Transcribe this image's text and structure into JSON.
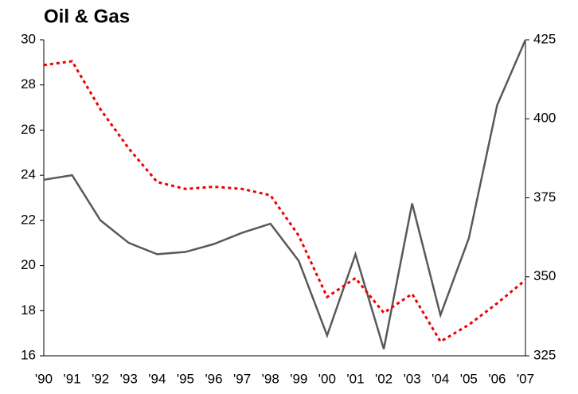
{
  "chart_data": {
    "type": "line",
    "title": "Oil & Gas",
    "categories": [
      "'90",
      "'91",
      "'92",
      "'93",
      "'94",
      "'95",
      "'96",
      "'97",
      "'98",
      "'99",
      "'00",
      "'01",
      "'02",
      "'03",
      "'04",
      "'05",
      "'06",
      "'07"
    ],
    "series": [
      {
        "color": "#595959",
        "values": [
          23.8,
          24.0,
          22.0,
          21.0,
          20.5,
          20.6,
          20.95,
          21.45,
          21.85,
          20.2,
          16.9,
          20.5,
          16.3,
          22.75,
          17.8,
          21.2,
          27.1,
          30.0
        ]
      },
      {
        "color": "#ee0000",
        "axis": "y2",
        "dashed": true,
        "values": [
          417,
          418.2,
          403,
          390.6,
          380,
          377.8,
          378.5,
          377.8,
          375.8,
          363,
          343.6,
          349.6,
          338.6,
          344.6,
          329.5,
          334.8,
          341.6,
          349
        ]
      }
    ],
    "ylim": [
      16,
      30
    ],
    "yticks": [
      16,
      18,
      20,
      22,
      24,
      26,
      28,
      30
    ],
    "y2lim": [
      325,
      425
    ],
    "y2ticks": [
      325,
      350,
      375,
      400,
      425
    ]
  }
}
